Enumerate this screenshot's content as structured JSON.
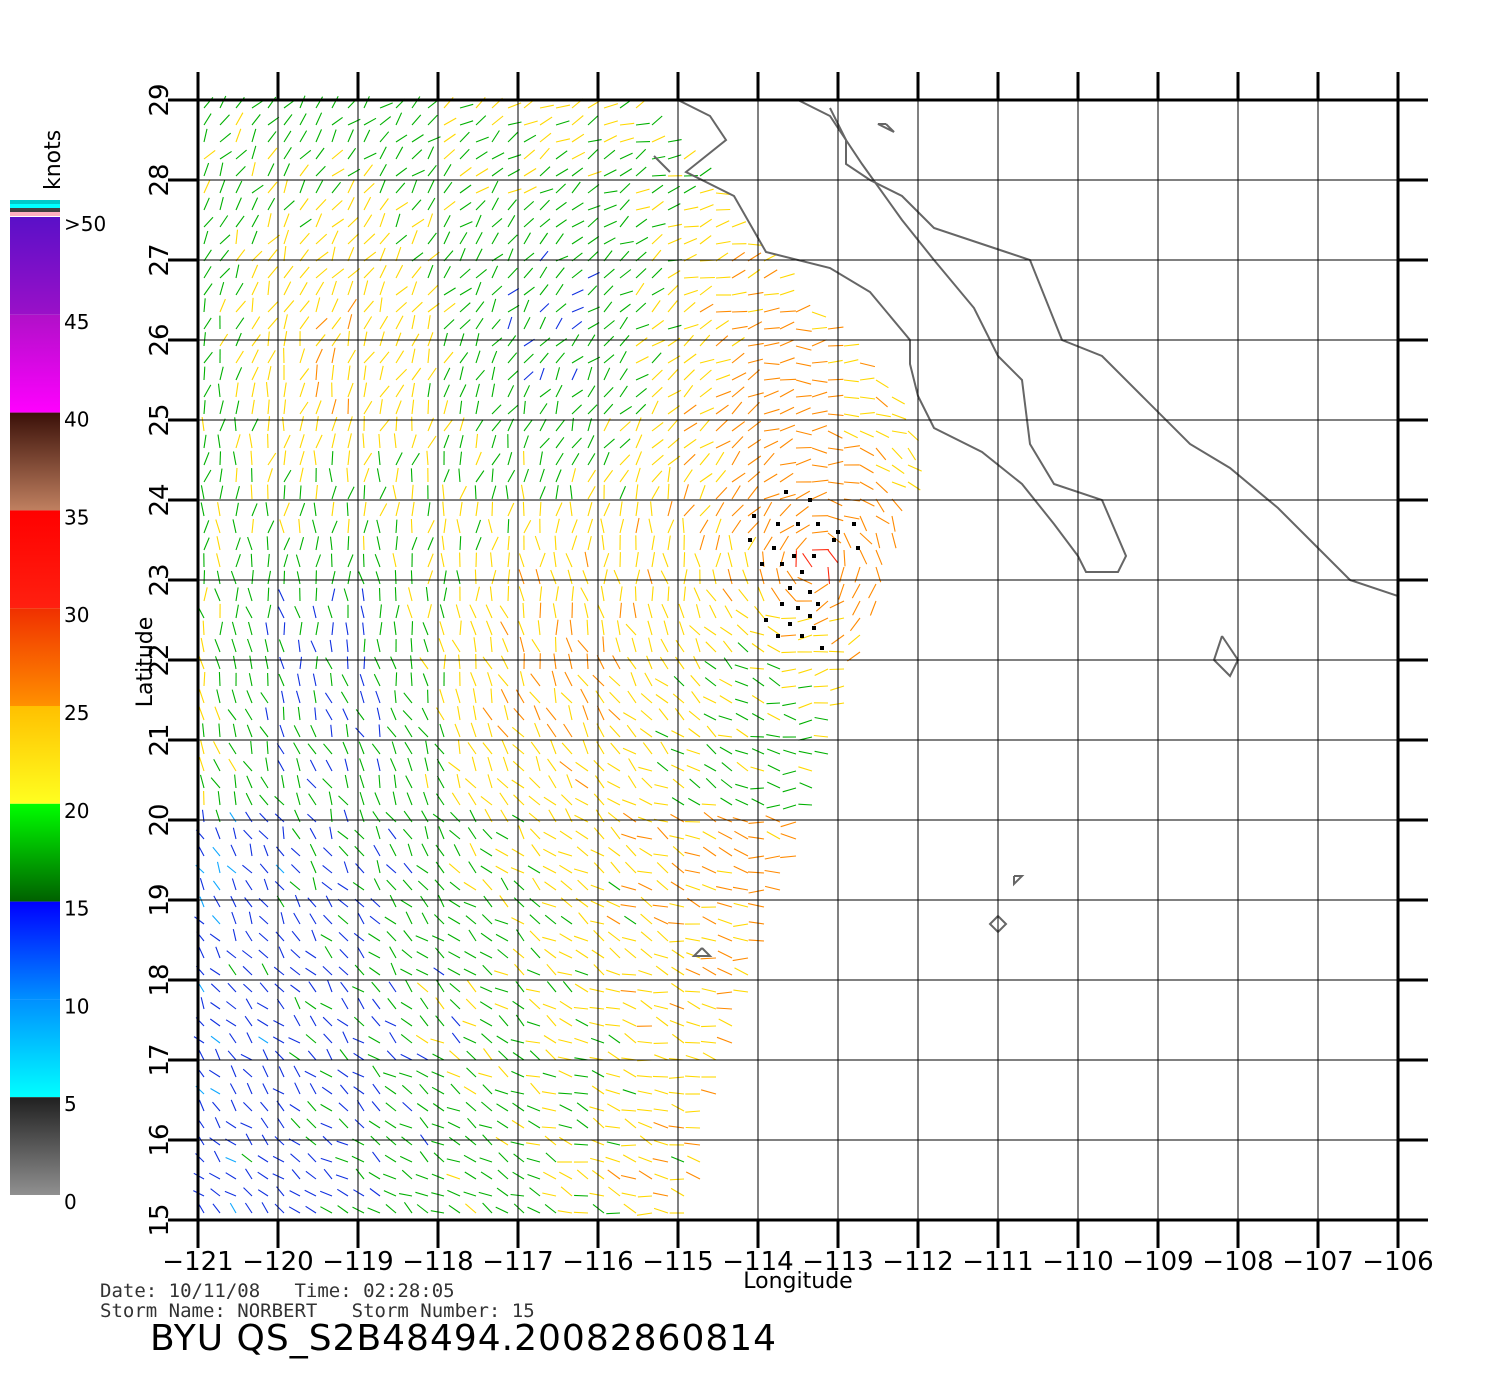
{
  "colorbar": {
    "unit": "knots",
    "labels": [
      ">50",
      "45",
      "40",
      "35",
      "30",
      "25",
      "20",
      "15",
      "10",
      "5",
      "0"
    ],
    "values": [
      50,
      45,
      40,
      35,
      30,
      25,
      20,
      15,
      10,
      5,
      0
    ],
    "bands": [
      {
        "from": 45,
        "to": 50,
        "top": "#5a10c8",
        "bottom": "#9a10c8"
      },
      {
        "from": 40,
        "to": 45,
        "top": "#b010c8",
        "bottom": "#ff00ff"
      },
      {
        "from": 35,
        "to": 40,
        "top": "#3a1008",
        "bottom": "#c08060"
      },
      {
        "from": 30,
        "to": 35,
        "top": "#ff0000",
        "bottom": "#ff2010"
      },
      {
        "from": 25,
        "to": 30,
        "top": "#f03000",
        "bottom": "#ff9000"
      },
      {
        "from": 20,
        "to": 25,
        "top": "#ffc000",
        "bottom": "#ffff20"
      },
      {
        "from": 15,
        "to": 20,
        "top": "#00ff00",
        "bottom": "#006000"
      },
      {
        "from": 10,
        "to": 15,
        "top": "#0000ff",
        "bottom": "#0090ff"
      },
      {
        "from": 5,
        "to": 10,
        "top": "#0090ff",
        "bottom": "#00ffff"
      },
      {
        "from": 0,
        "to": 5,
        "top": "#202020",
        "bottom": "#909090"
      }
    ],
    "cap_colors": [
      "#00c8c8",
      "#00ffff",
      "#404040",
      "#ffb0c0"
    ]
  },
  "map": {
    "xlabel": "Longitude",
    "ylabel": "Latitude",
    "lon_range": [
      -121,
      -106
    ],
    "lat_range": [
      15,
      29
    ],
    "lon_ticks": [
      "-121",
      "-120",
      "-119",
      "-118",
      "-117",
      "-116",
      "-115",
      "-114",
      "-113",
      "-112",
      "-111",
      "-110",
      "-109",
      "-108",
      "-107",
      "-106"
    ],
    "lat_ticks": [
      "15",
      "16",
      "17",
      "18",
      "19",
      "20",
      "21",
      "22",
      "23",
      "24",
      "25",
      "26",
      "27",
      "28",
      "29"
    ],
    "grid": true,
    "coast_color": "#666666",
    "swath_edge": [
      [
        -121,
        15
      ],
      [
        -114.8,
        15
      ],
      [
        -114.5,
        16.7
      ],
      [
        -113.8,
        18.7
      ],
      [
        -113.1,
        20.7
      ],
      [
        -112.5,
        22.7
      ],
      [
        -112.0,
        24.7
      ],
      [
        -112.4,
        25.6
      ],
      [
        -113.5,
        26.5
      ],
      [
        -114.8,
        28.2
      ],
      [
        -115.4,
        29.0
      ],
      [
        -121,
        29
      ]
    ],
    "storm_marks": [
      {
        "lon": -113.65,
        "lat": 24.1
      },
      {
        "lon": -113.35,
        "lat": 24.0
      },
      {
        "lon": -114.05,
        "lat": 23.8
      },
      {
        "lon": -113.75,
        "lat": 23.7
      },
      {
        "lon": -113.5,
        "lat": 23.7
      },
      {
        "lon": -113.25,
        "lat": 23.7
      },
      {
        "lon": -113.0,
        "lat": 23.6
      },
      {
        "lon": -112.8,
        "lat": 23.7
      },
      {
        "lon": -114.1,
        "lat": 23.5
      },
      {
        "lon": -113.8,
        "lat": 23.4
      },
      {
        "lon": -113.55,
        "lat": 23.3
      },
      {
        "lon": -113.3,
        "lat": 23.3
      },
      {
        "lon": -113.05,
        "lat": 23.5
      },
      {
        "lon": -112.75,
        "lat": 23.4
      },
      {
        "lon": -113.95,
        "lat": 23.2
      },
      {
        "lon": -113.7,
        "lat": 23.2
      },
      {
        "lon": -113.45,
        "lat": 23.1
      },
      {
        "lon": -113.6,
        "lat": 22.9
      },
      {
        "lon": -113.35,
        "lat": 22.85
      },
      {
        "lon": -113.25,
        "lat": 22.7
      },
      {
        "lon": -113.7,
        "lat": 22.7
      },
      {
        "lon": -113.5,
        "lat": 22.65
      },
      {
        "lon": -113.35,
        "lat": 22.55
      },
      {
        "lon": -113.9,
        "lat": 22.5
      },
      {
        "lon": -113.6,
        "lat": 22.45
      },
      {
        "lon": -113.3,
        "lat": 22.4
      },
      {
        "lon": -113.75,
        "lat": 22.3
      },
      {
        "lon": -113.45,
        "lat": 22.3
      },
      {
        "lon": -113.2,
        "lat": 22.15
      }
    ]
  },
  "footer": {
    "line1": "Date: 10/11/08   Time: 02:28:05",
    "line2": "Storm Name: NORBERT   Storm Number: 15",
    "title": "BYU QS_S2B48494.20082860814"
  }
}
